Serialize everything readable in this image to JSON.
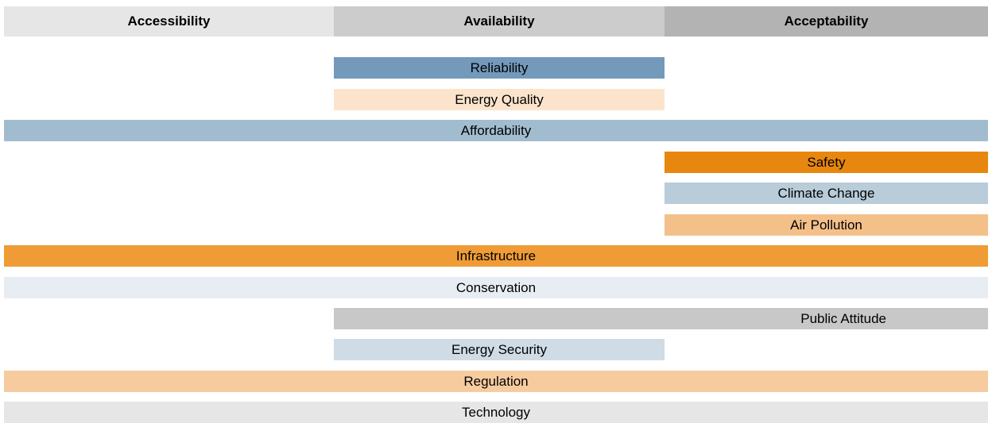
{
  "headers": [
    "Accessibility",
    "Availability",
    "Acceptability"
  ],
  "bars": [
    {
      "label": "Reliability"
    },
    {
      "label": "Energy Quality"
    },
    {
      "label": "Affordability"
    },
    {
      "label": "Safety"
    },
    {
      "label": "Climate Change"
    },
    {
      "label": "Air Pollution"
    },
    {
      "label": "Infrastructure"
    },
    {
      "label": "Conservation"
    },
    {
      "label": "Public Attitude"
    },
    {
      "label": "Energy Security"
    },
    {
      "label": "Regulation"
    },
    {
      "label": "Technology"
    }
  ]
}
